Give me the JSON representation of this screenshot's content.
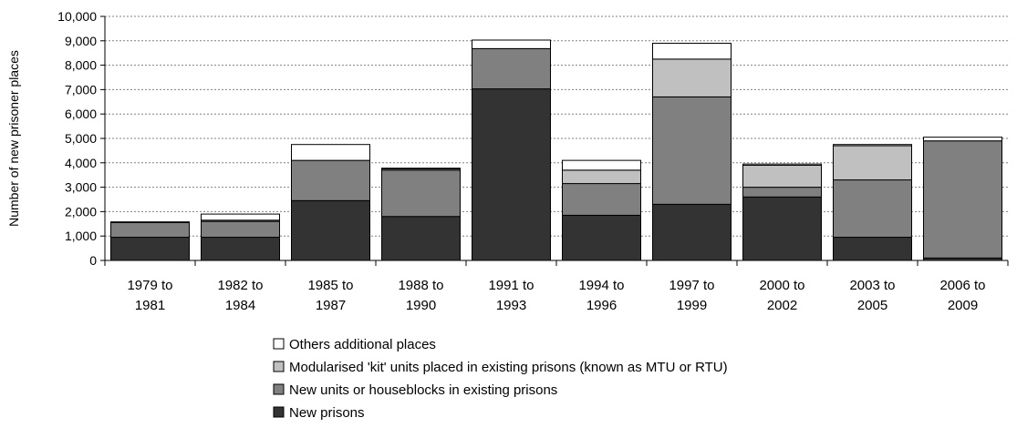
{
  "chart_data": {
    "type": "bar",
    "stacked": true,
    "title": "",
    "xlabel": "",
    "ylabel": "Number of new prisoner places",
    "ylim": [
      0,
      10000
    ],
    "yticks": [
      0,
      1000,
      2000,
      3000,
      4000,
      5000,
      6000,
      7000,
      8000,
      9000,
      10000
    ],
    "ytick_labels": [
      "0",
      "1,000",
      "2,000",
      "3,000",
      "4,000",
      "5,000",
      "6,000",
      "7,000",
      "8,000",
      "9,000",
      "10,000"
    ],
    "grid": "horizontal dashed",
    "legend_placement": "bottom",
    "categories": [
      [
        "1979 to",
        "1981"
      ],
      [
        "1982 to",
        "1984"
      ],
      [
        "1985 to",
        "1987"
      ],
      [
        "1988 to",
        "1990"
      ],
      [
        "1991 to",
        "1993"
      ],
      [
        "1994 to",
        "1996"
      ],
      [
        "1997 to",
        "1999"
      ],
      [
        "2000 to",
        "2002"
      ],
      [
        "2003 to",
        "2005"
      ],
      [
        "2006 to",
        "2009"
      ]
    ],
    "series": [
      {
        "name": "New prisons",
        "color": "#333333",
        "values": [
          950,
          950,
          2450,
          1800,
          7030,
          1850,
          2300,
          2600,
          950,
          100
        ]
      },
      {
        "name": "New units or houseblocks in existing prisons",
        "color": "#808080",
        "values": [
          600,
          650,
          1650,
          1900,
          1650,
          1300,
          4400,
          400,
          2350,
          4800
        ]
      },
      {
        "name": "Modularised 'kit' units placed in existing prisons (known as MTU or RTU)",
        "color": "#c0c0c0",
        "values": [
          0,
          50,
          0,
          50,
          0,
          550,
          1550,
          900,
          1400,
          0
        ]
      },
      {
        "name": "Others additional places",
        "color": "#ffffff",
        "values": [
          30,
          250,
          650,
          30,
          350,
          400,
          650,
          50,
          50,
          150
        ]
      }
    ],
    "legend_order": [
      3,
      2,
      1,
      0
    ]
  }
}
